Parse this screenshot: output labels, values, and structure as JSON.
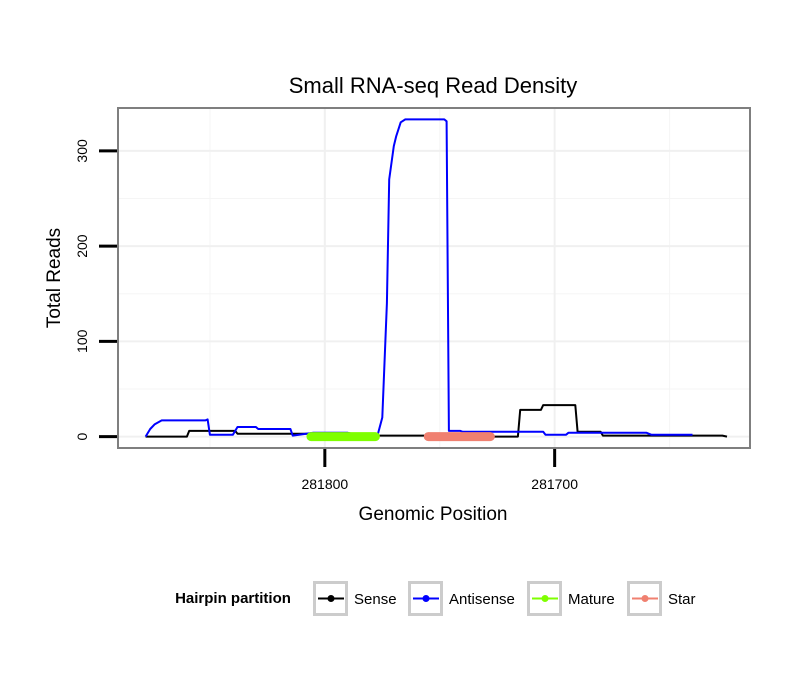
{
  "chart_data": {
    "type": "line",
    "title": "Small RNA-seq Read Density",
    "xlabel": "Genomic Position",
    "ylabel": "Total Reads",
    "x_reversed": true,
    "xlim": [
      281890,
      281615
    ],
    "ylim": [
      -12,
      345
    ],
    "x_ticks": [
      281800,
      281700
    ],
    "x_tick_labels": [
      "281800",
      "281700"
    ],
    "y_ticks": [
      0,
      100,
      200,
      300
    ],
    "y_tick_labels": [
      "0",
      "100",
      "200",
      "300"
    ],
    "grid": true,
    "legend": {
      "title": "Hairpin partition",
      "position": "bottom",
      "entries": [
        {
          "label": "Sense",
          "color": "#000000"
        },
        {
          "label": "Antisense",
          "color": "#0000ff"
        },
        {
          "label": "Mature",
          "color": "#7fff00"
        },
        {
          "label": "Star",
          "color": "#f08070"
        }
      ]
    },
    "series": [
      {
        "name": "Sense",
        "color": "#000000",
        "points": [
          [
            281878,
            0
          ],
          [
            281860,
            0
          ],
          [
            281859,
            6
          ],
          [
            281839,
            6
          ],
          [
            281838,
            3
          ],
          [
            281795,
            3
          ],
          [
            281794,
            1
          ],
          [
            281740,
            1
          ],
          [
            281732,
            1
          ],
          [
            281731,
            0
          ],
          [
            281716,
            0
          ],
          [
            281715,
            28
          ],
          [
            281706,
            28
          ],
          [
            281705,
            33
          ],
          [
            281691,
            33
          ],
          [
            281690,
            5
          ],
          [
            281680,
            5
          ],
          [
            281679,
            1
          ],
          [
            281627,
            1
          ],
          [
            281625,
            0
          ]
        ]
      },
      {
        "name": "Antisense",
        "color": "#0000ff",
        "points": [
          [
            281878,
            0
          ],
          [
            281876,
            8
          ],
          [
            281874,
            13
          ],
          [
            281871,
            17
          ],
          [
            281852,
            17
          ],
          [
            281851,
            18
          ],
          [
            281850,
            2
          ],
          [
            281840,
            2
          ],
          [
            281838,
            10
          ],
          [
            281830,
            10
          ],
          [
            281829,
            8
          ],
          [
            281815,
            8
          ],
          [
            281814,
            1
          ],
          [
            281805,
            4
          ],
          [
            281790,
            4
          ],
          [
            281786,
            2
          ],
          [
            281777,
            2
          ],
          [
            281775,
            20
          ],
          [
            281773,
            140
          ],
          [
            281772,
            270
          ],
          [
            281770,
            305
          ],
          [
            281769,
            315
          ],
          [
            281767,
            330
          ],
          [
            281765,
            333
          ],
          [
            281748,
            333
          ],
          [
            281747,
            331
          ],
          [
            281746,
            6
          ],
          [
            281741,
            6
          ],
          [
            281740,
            5
          ],
          [
            281705,
            5
          ],
          [
            281704,
            2
          ],
          [
            281695,
            2
          ],
          [
            281694,
            4
          ],
          [
            281660,
            4
          ],
          [
            281658,
            2
          ],
          [
            281640,
            2
          ]
        ]
      },
      {
        "name": "Mature",
        "color": "#7fff00",
        "points": [
          [
            281806,
            0
          ],
          [
            281778,
            0
          ]
        ]
      },
      {
        "name": "Star",
        "color": "#f08070",
        "points": [
          [
            281755,
            0
          ],
          [
            281728,
            0
          ]
        ]
      }
    ]
  }
}
